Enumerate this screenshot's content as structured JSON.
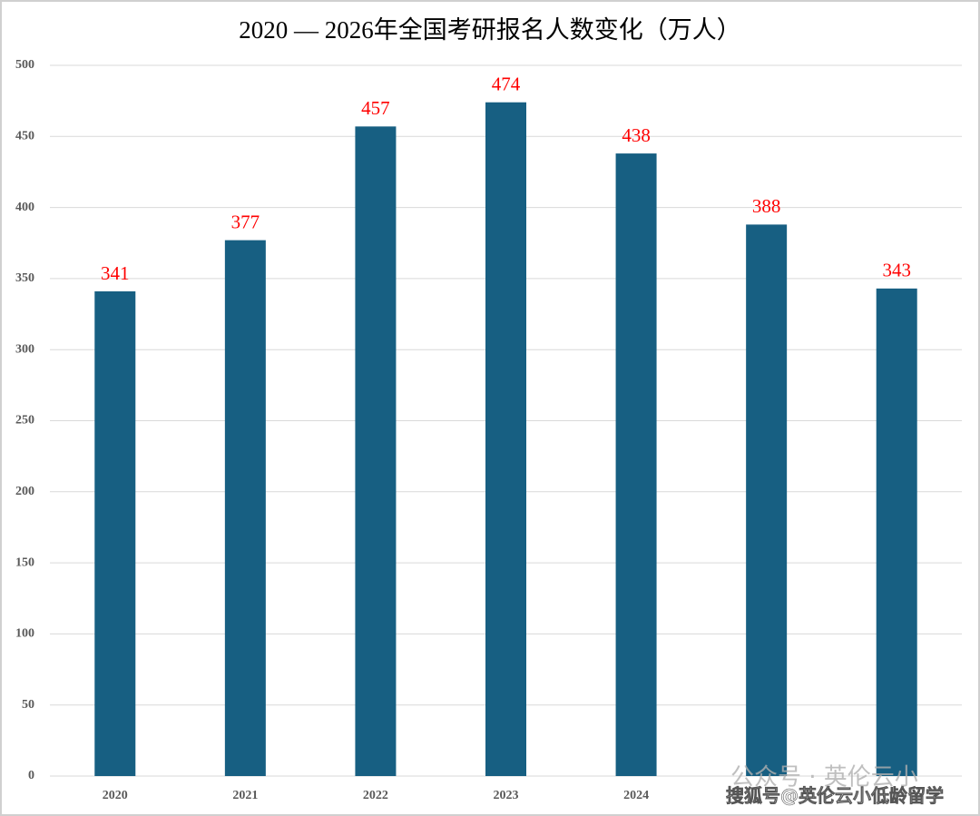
{
  "chart_data": {
    "type": "bar",
    "title": "2020 — 2026年全国考研报名人数变化（万人）",
    "categories": [
      "2020",
      "2021",
      "2022",
      "2023",
      "2024",
      null,
      null
    ],
    "values": [
      341,
      377,
      457,
      474,
      438,
      388,
      343
    ],
    "color": "#175f82",
    "value_label_color": "#ff0000",
    "ylim": [
      0,
      500
    ],
    "yticks": [
      0,
      50,
      100,
      150,
      200,
      250,
      300,
      350,
      400,
      450,
      500
    ],
    "grid": true
  },
  "watermark": {
    "account": "公众号 · 英伦云小",
    "source": "搜狐号@英伦云小低龄留学"
  }
}
